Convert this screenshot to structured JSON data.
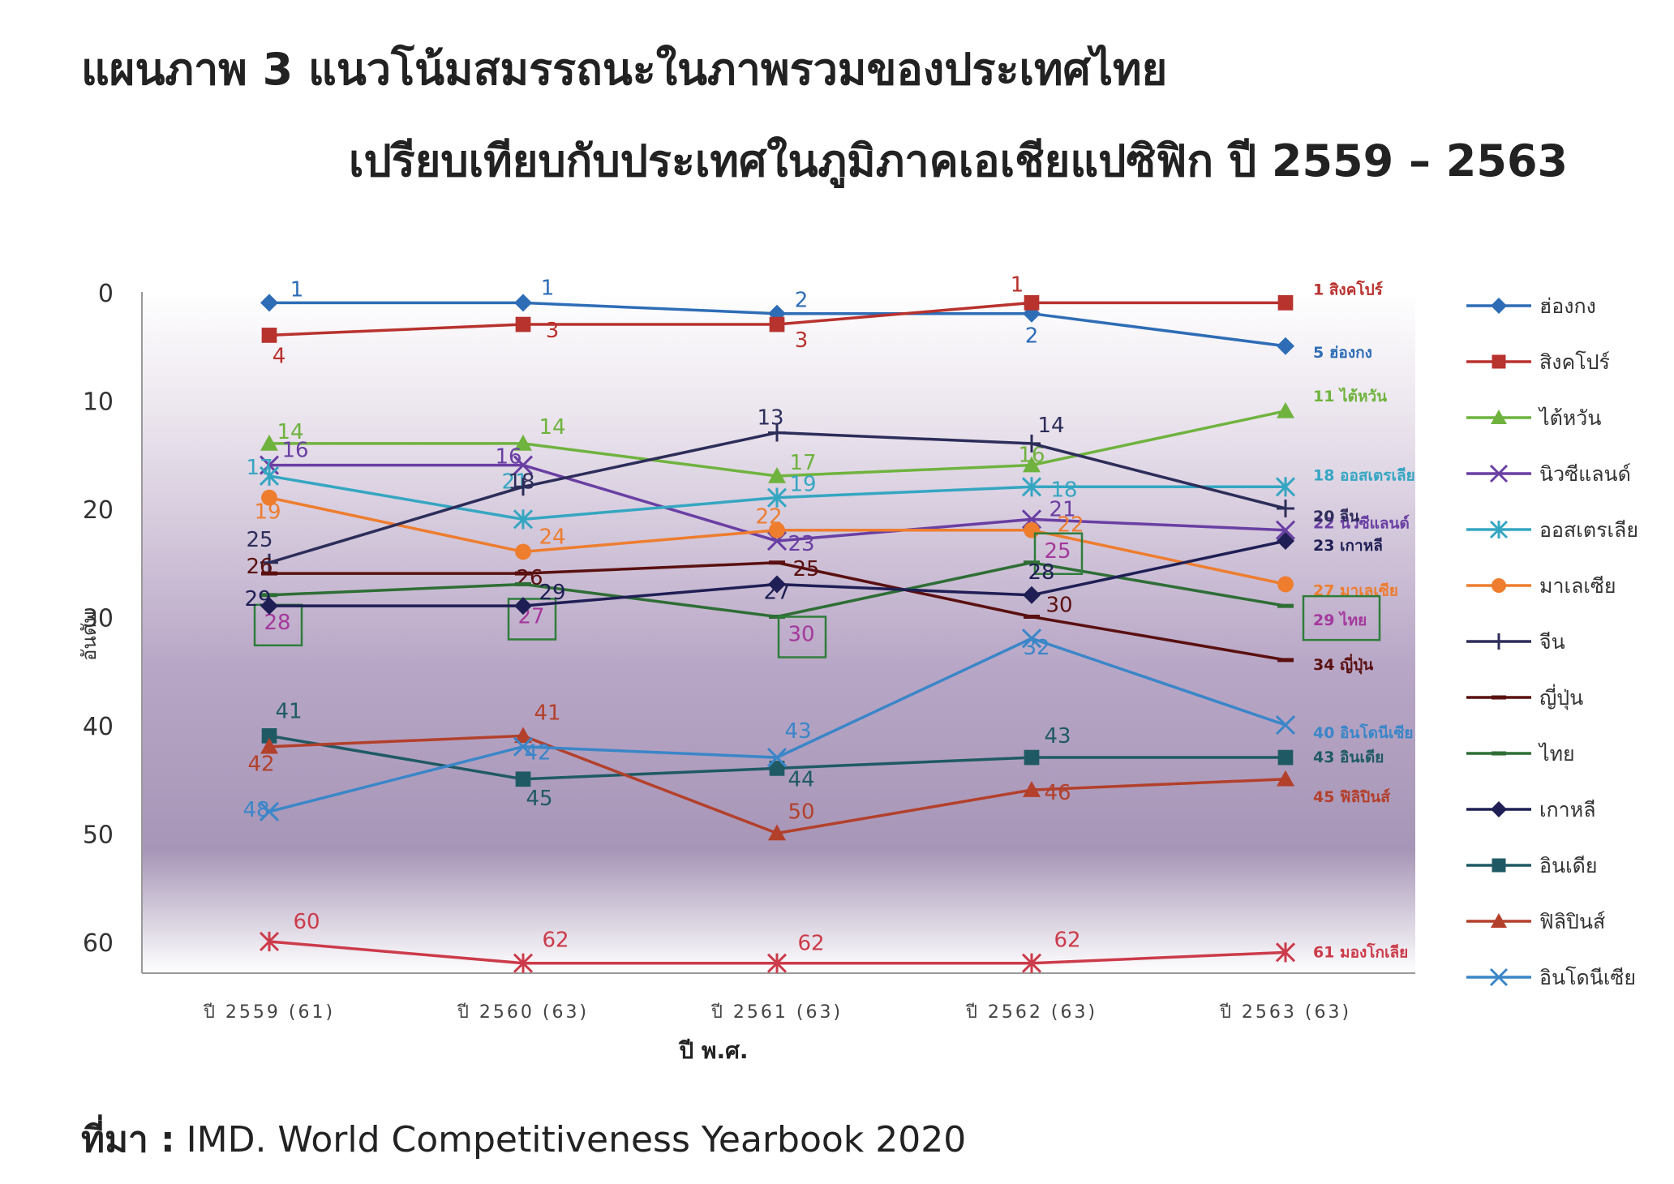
{
  "figure": {
    "title_line1": "แผนภาพ 3  แนวโน้มสมรรถนะในภาพรวมของประเทศไทย",
    "title_line2": "เปรียบเทียบกับประเทศในภูมิภาคเอเชียแปซิฟิก ปี 2559 – 2563",
    "source_label": "ที่มา :",
    "source_text": " IMD. World Competitiveness Yearbook 2020"
  },
  "chart_data": {
    "type": "line",
    "title": "",
    "xlabel": "ปี พ.ศ.",
    "ylabel": "อันดับ",
    "categories": [
      "ปี 2559 (61)",
      "ปี 2560 (63)",
      "ปี 2561 (63)",
      "ปี 2562 (63)",
      "ปี 2563 (63)"
    ],
    "ylim": [
      0,
      63
    ],
    "y_inverted": true,
    "y_ticks": [
      0,
      10,
      20,
      30,
      40,
      50,
      60
    ],
    "legend_position": "right",
    "series": [
      {
        "name": "ฮ่องกง",
        "color": "#2e6db6",
        "marker": "diamond",
        "values": [
          1,
          1,
          2,
          2,
          5
        ],
        "end_label": "5 ฮ่องกง"
      },
      {
        "name": "สิงคโปร์",
        "color": "#b8322e",
        "marker": "square",
        "values": [
          4,
          3,
          3,
          1,
          1
        ],
        "end_label": "1 สิงคโปร์"
      },
      {
        "name": "ไต้หวัน",
        "color": "#6fb33e",
        "marker": "triangle",
        "values": [
          14,
          14,
          17,
          16,
          11
        ],
        "end_label": "11 ไต้หวัน"
      },
      {
        "name": "นิวซีแลนด์",
        "color": "#6a3fa3",
        "marker": "x",
        "values": [
          16,
          16,
          23,
          21,
          22
        ],
        "end_label": "22 นิวซีแลนด์"
      },
      {
        "name": "ออสเตรเลีย",
        "color": "#35a6c2",
        "marker": "asterisk",
        "values": [
          17,
          21,
          19,
          18,
          18
        ],
        "end_label": "18 ออสเตรเลีย"
      },
      {
        "name": "มาเลเซีย",
        "color": "#ee7d2e",
        "marker": "circle",
        "values": [
          19,
          24,
          22,
          22,
          27
        ],
        "end_label": "27 มาเลเซีย"
      },
      {
        "name": "จีน",
        "color": "#2d2d5a",
        "marker": "plus",
        "values": [
          25,
          18,
          13,
          14,
          20
        ],
        "end_label": "20 จีน"
      },
      {
        "name": "ญี่ปุ่น",
        "color": "#5a1010",
        "marker": "dash",
        "values": [
          26,
          26,
          25,
          30,
          34
        ],
        "end_label": "34 ญี่ปุ่น"
      },
      {
        "name": "ไทย",
        "color": "#2e6e35",
        "marker": "dash",
        "values": [
          28,
          27,
          30,
          25,
          29
        ],
        "end_label": "29 ไทย"
      },
      {
        "name": "เกาหลี",
        "color": "#1f1f55",
        "marker": "diamond",
        "values": [
          29,
          29,
          27,
          28,
          23
        ],
        "end_label": "23 เกาหลี"
      },
      {
        "name": "อินเดีย",
        "color": "#1f5a64",
        "marker": "square",
        "values": [
          41,
          45,
          44,
          43,
          43
        ],
        "end_label": "43 อินเดีย"
      },
      {
        "name": "ฟิลิปินส์",
        "color": "#b3402b",
        "marker": "triangle",
        "values": [
          42,
          41,
          50,
          46,
          45
        ],
        "end_label": "45 ฟิลิปินส์"
      },
      {
        "name": "อินโดนีเซีย",
        "color": "#3a86c8",
        "marker": "x",
        "values": [
          48,
          42,
          43,
          32,
          40
        ],
        "end_label": "40 อินโดนีเซีย"
      },
      {
        "name": "",
        "color": "#cc3b4a",
        "marker": "asterisk",
        "values": [
          60,
          62,
          62,
          62,
          61
        ],
        "end_label": "61 มองโกเลีย"
      }
    ]
  }
}
